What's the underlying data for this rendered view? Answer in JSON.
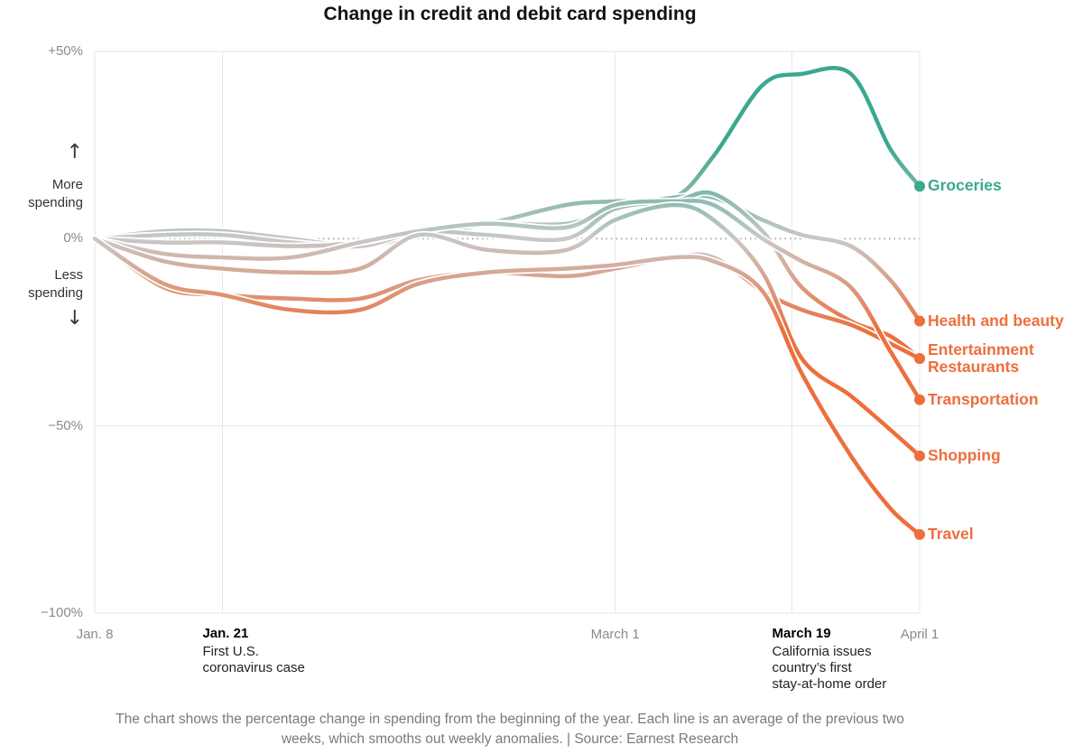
{
  "chart_data": {
    "type": "line",
    "title": "Change in credit and debit card spending",
    "y_tick_labels": [
      "+50%",
      "0%",
      "−50%",
      "−100%"
    ],
    "y_ticks": [
      50,
      0,
      -50,
      -100
    ],
    "ylim": [
      -100,
      50
    ],
    "y_annotations": {
      "up": "More spending",
      "down": "Less spending",
      "up_arrow": "↑",
      "down_arrow": "↓"
    },
    "x_ticks": [
      {
        "day": 0,
        "label": "Jan. 8"
      },
      {
        "day": 53,
        "label": "March 1"
      },
      {
        "day": 84,
        "label": "April 1"
      }
    ],
    "annotations": [
      {
        "day": 13,
        "date": "Jan. 21",
        "text": [
          "First U.S.",
          "coronavirus case"
        ]
      },
      {
        "day": 71,
        "date": "March 19",
        "text": [
          "California issues",
          "country’s first",
          "stay-at-home order"
        ]
      }
    ],
    "x_day_range": [
      0,
      84
    ],
    "colors": {
      "up": "#3aa88f",
      "down": "#ee6e3c",
      "neutral": "#c8c8c8",
      "grid": "#e6e6e6",
      "zero_line": "#9a9a9a"
    },
    "series": [
      {
        "name": "Groceries",
        "x": [
          0,
          7,
          13,
          20,
          27,
          33,
          40,
          48,
          53,
          59,
          63,
          68,
          72,
          77,
          81,
          84
        ],
        "y": [
          0,
          2,
          2,
          0,
          -2,
          1,
          4,
          9,
          10,
          11,
          22,
          41,
          44,
          44,
          24,
          14
        ]
      },
      {
        "name": "Health and beauty",
        "x": [
          0,
          7,
          13,
          20,
          27,
          33,
          40,
          48,
          53,
          59,
          63,
          68,
          72,
          77,
          81,
          84
        ],
        "y": [
          0,
          1,
          1,
          -1,
          -2,
          2,
          4,
          4,
          8,
          11,
          11,
          5,
          1,
          -2,
          -11,
          -22
        ]
      },
      {
        "name": "Entertainment",
        "x": [
          0,
          7,
          13,
          20,
          27,
          33,
          40,
          48,
          53,
          59,
          63,
          68,
          72,
          77,
          81,
          84
        ],
        "y": [
          0,
          -1,
          -1,
          -2,
          -1,
          2,
          1,
          0,
          8,
          10,
          12,
          2,
          -13,
          -22,
          -26,
          -32
        ]
      },
      {
        "name": "Restaurants",
        "x": [
          0,
          7,
          13,
          20,
          27,
          33,
          40,
          48,
          53,
          59,
          63,
          68,
          72,
          77,
          81,
          84
        ],
        "y": [
          0,
          -13,
          -15,
          -16,
          -16,
          -11,
          -9,
          -10,
          -8,
          -5,
          -5,
          -14,
          -19,
          -23,
          -28,
          -32
        ]
      },
      {
        "name": "Transportation",
        "x": [
          0,
          7,
          13,
          20,
          27,
          33,
          40,
          48,
          53,
          59,
          63,
          68,
          72,
          77,
          81,
          84
        ],
        "y": [
          0,
          -4,
          -5,
          -5,
          -1,
          2,
          4,
          3,
          9,
          10,
          9,
          0,
          -6,
          -13,
          -30,
          -43
        ]
      },
      {
        "name": "Shopping",
        "x": [
          0,
          7,
          13,
          20,
          27,
          33,
          40,
          48,
          53,
          59,
          63,
          68,
          72,
          77,
          81,
          84
        ],
        "y": [
          0,
          -6,
          -8,
          -9,
          -8,
          1,
          -3,
          -3,
          5,
          9,
          5,
          -9,
          -32,
          -42,
          -51,
          -58
        ]
      },
      {
        "name": "Travel",
        "x": [
          0,
          7,
          13,
          20,
          27,
          33,
          40,
          48,
          53,
          59,
          63,
          68,
          72,
          77,
          81,
          84
        ],
        "y": [
          0,
          -12,
          -15,
          -19,
          -19,
          -12,
          -9,
          -8,
          -7,
          -5,
          -6,
          -14,
          -36,
          -58,
          -72,
          -79
        ]
      }
    ],
    "end_labels": [
      {
        "text": "Groceries",
        "color": "up"
      },
      {
        "text": "Health and beauty",
        "color": "down"
      },
      {
        "text": "Entertainment",
        "color": "down"
      },
      {
        "text": "Restaurants",
        "color": "down"
      },
      {
        "text": "Transportation",
        "color": "down"
      },
      {
        "text": "Shopping",
        "color": "down"
      },
      {
        "text": "Travel",
        "color": "down"
      }
    ]
  },
  "caption": "The chart shows the percentage change in spending from the beginning of the year. Each line is an average of the previous two weeks, which smooths out weekly anomalies. | Source: Earnest Research"
}
